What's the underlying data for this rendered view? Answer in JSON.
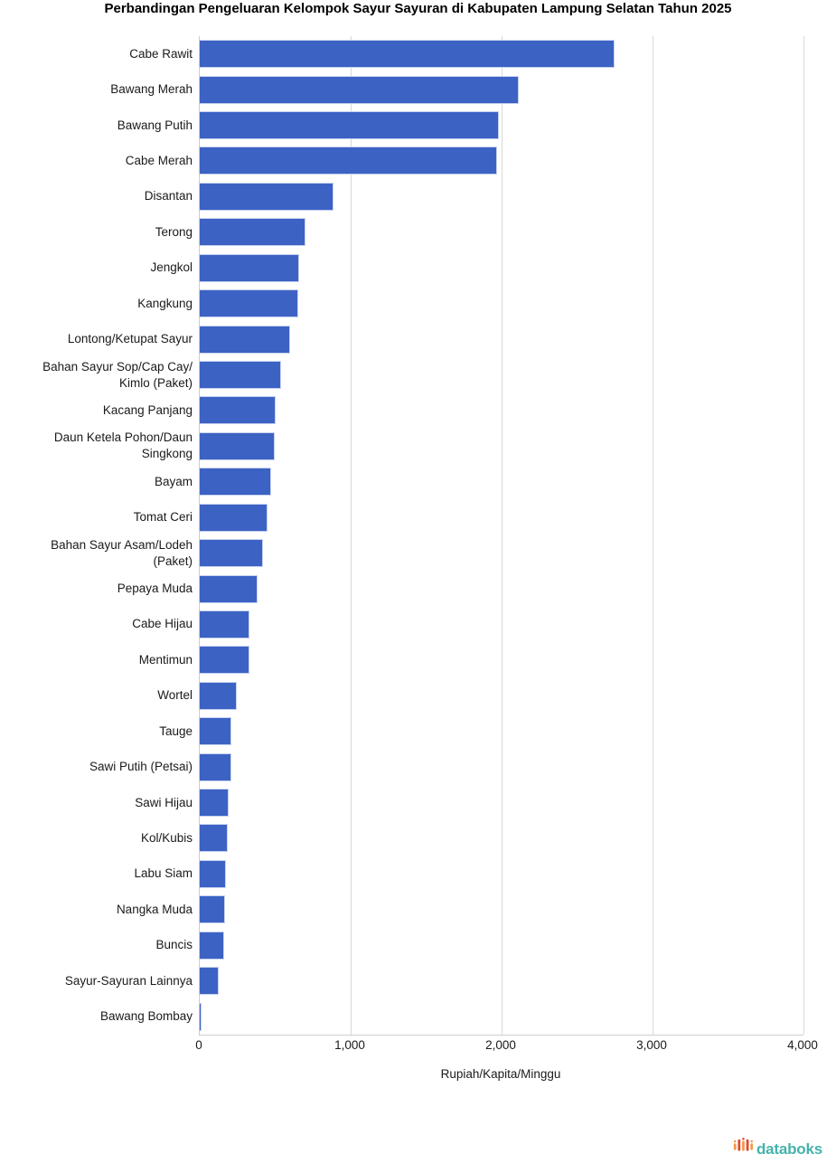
{
  "title": "Perbandingan Pengeluaran Kelompok Sayur Sayuran di Kabupaten Lampung Selatan Tahun 2025",
  "chart_data": {
    "type": "bar",
    "orientation": "horizontal",
    "title": "Perbandingan Pengeluaran Kelompok Sayur Sayuran di Kabupaten Lampung Selatan Tahun 2025",
    "xlabel": "Rupiah/Kapita/Minggu",
    "ylabel": "",
    "xlim": [
      0,
      4000
    ],
    "xticks": [
      0,
      1000,
      2000,
      3000,
      4000
    ],
    "xtick_labels": [
      "0",
      "1,000",
      "2,000",
      "3,000",
      "4,000"
    ],
    "grid": true,
    "legend": false,
    "bar_color": "#3C62C4",
    "bar_border_color": "#C7D2EF",
    "gridline_color": "#D9D9D9",
    "categories": [
      "Cabe Rawit",
      "Bawang Merah",
      "Bawang Putih",
      "Cabe Merah",
      "Disantan",
      "Terong",
      "Jengkol",
      "Kangkung",
      "Lontong/Ketupat Sayur",
      "Bahan Sayur Sop/Cap Cay/ Kimlo (Paket)",
      "Kacang Panjang",
      "Daun Ketela Pohon/Daun Singkong",
      "Bayam",
      "Tomat Ceri",
      "Bahan Sayur Asam/Lodeh (Paket)",
      "Pepaya Muda",
      "Cabe Hijau",
      "Mentimun",
      "Wortel",
      "Tauge",
      "Sawi Putih (Petsai)",
      "Sawi Hijau",
      "Kol/Kubis",
      "Labu Siam",
      "Nangka Muda",
      "Buncis",
      "Sayur-Sayuran Lainnya",
      "Bawang Bombay"
    ],
    "values": [
      2750,
      2115,
      1981,
      1972,
      886,
      699,
      659,
      651,
      598,
      539,
      500,
      498,
      471,
      447,
      419,
      382,
      331,
      327,
      245,
      210,
      207,
      192,
      186,
      172,
      168,
      163,
      126,
      12
    ]
  },
  "branding": {
    "wordmark": "databoks",
    "wordmark_color": "#46B2AB",
    "icon": "databoks-bars-icon",
    "icon_colors": [
      "#F2994A",
      "#E0482E"
    ]
  }
}
